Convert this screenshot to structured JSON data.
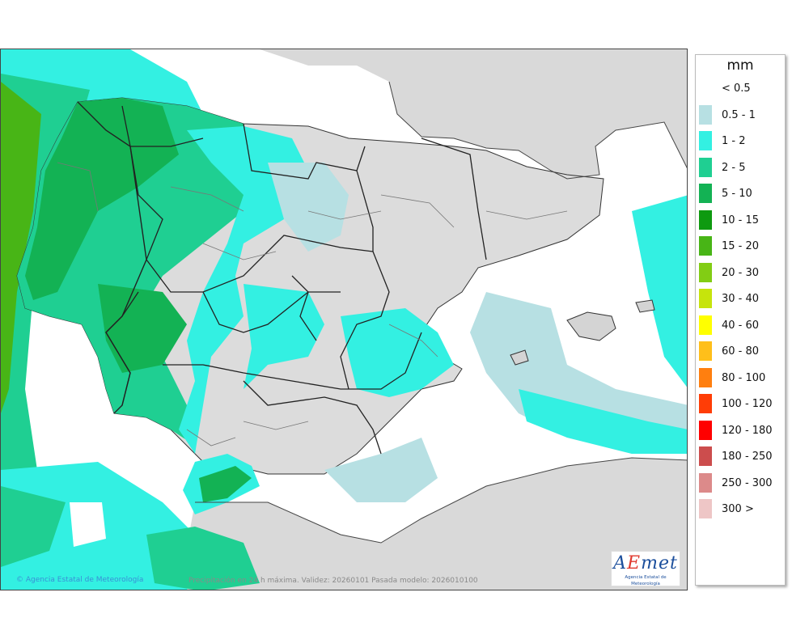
{
  "legend": {
    "title": "mm",
    "items": [
      {
        "label": "< 0.5",
        "color": "#ffffff"
      },
      {
        "label": "0.5 - 1",
        "color": "#b7e0e3"
      },
      {
        "label": "1 - 2",
        "color": "#33f0e2"
      },
      {
        "label": "2 - 5",
        "color": "#1fcf92"
      },
      {
        "label": "5 - 10",
        "color": "#13b254"
      },
      {
        "label": "10 - 15",
        "color": "#0e9a10"
      },
      {
        "label": "15 - 20",
        "color": "#48b516"
      },
      {
        "label": "20 - 30",
        "color": "#82cd14"
      },
      {
        "label": "30 - 40",
        "color": "#c6e40c"
      },
      {
        "label": "40 - 60",
        "color": "#ffff00"
      },
      {
        "label": "60 - 80",
        "color": "#ffbf1a"
      },
      {
        "label": "80 - 100",
        "color": "#ff7f0f"
      },
      {
        "label": "100 - 120",
        "color": "#ff3d06"
      },
      {
        "label": "120 - 180",
        "color": "#ff0000"
      },
      {
        "label": "180 - 250",
        "color": "#cc4d4d"
      },
      {
        "label": "250 - 300",
        "color": "#dc8a8a"
      },
      {
        "label": "300 >",
        "color": "#eec6c6"
      }
    ]
  },
  "footer": {
    "credit": "Agencia Estatal de Meteorología",
    "caption": "Precipitación en 24 h máxima. Validez: 20260101 Pasada modelo: 2026010100"
  },
  "logo": {
    "word_a": "A",
    "word_e": "E",
    "word_rest": "met",
    "subtitle": "Agencia Estatal de Meteorología"
  }
}
